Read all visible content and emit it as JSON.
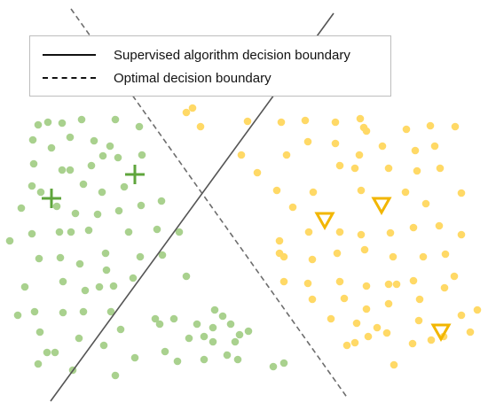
{
  "legend": {
    "solid_label": "Supervised algorithm decision boundary",
    "dashed_label": "Optimal decision boundary"
  },
  "colors": {
    "green_point": "#a9d18e",
    "yellow_point": "#ffd966",
    "green_marker": "#5fa53c",
    "orange_marker": "#f2b600",
    "solid_line": "#555555",
    "dashed_line": "#6d6d6d"
  },
  "icons": {
    "class_a_labeled": "plus-marker",
    "class_b_labeled": "triangle-down-marker"
  },
  "points": {
    "green": [
      [
        43,
        141
      ],
      [
        54,
        138
      ],
      [
        70,
        139
      ],
      [
        92,
        135
      ],
      [
        130,
        135
      ],
      [
        37,
        158
      ],
      [
        58,
        167
      ],
      [
        79,
        155
      ],
      [
        106,
        159
      ],
      [
        124,
        165
      ],
      [
        157,
        143
      ],
      [
        38,
        185
      ],
      [
        79,
        192
      ],
      [
        70,
        192
      ],
      [
        103,
        187
      ],
      [
        116,
        176
      ],
      [
        133,
        178
      ],
      [
        160,
        175
      ],
      [
        36,
        210
      ],
      [
        46,
        217
      ],
      [
        94,
        208
      ],
      [
        115,
        217
      ],
      [
        140,
        211
      ],
      [
        182,
        227
      ],
      [
        24,
        235
      ],
      [
        64,
        233
      ],
      [
        85,
        241
      ],
      [
        110,
        242
      ],
      [
        134,
        238
      ],
      [
        159,
        232
      ],
      [
        11,
        272
      ],
      [
        36,
        264
      ],
      [
        67,
        262
      ],
      [
        80,
        262
      ],
      [
        100,
        260
      ],
      [
        145,
        262
      ],
      [
        177,
        259
      ],
      [
        202,
        262
      ],
      [
        44,
        292
      ],
      [
        68,
        291
      ],
      [
        90,
        298
      ],
      [
        119,
        286
      ],
      [
        158,
        290
      ],
      [
        183,
        288
      ],
      [
        28,
        324
      ],
      [
        71,
        318
      ],
      [
        112,
        324
      ],
      [
        128,
        323
      ],
      [
        210,
        312
      ],
      [
        39,
        352
      ],
      [
        20,
        356
      ],
      [
        71,
        353
      ],
      [
        94,
        352
      ],
      [
        125,
        352
      ],
      [
        175,
        360
      ],
      [
        196,
        360
      ],
      [
        242,
        350
      ],
      [
        251,
        357
      ],
      [
        45,
        375
      ],
      [
        89,
        382
      ],
      [
        136,
        372
      ],
      [
        180,
        366
      ],
      [
        222,
        366
      ],
      [
        230,
        380
      ],
      [
        213,
        382
      ],
      [
        240,
        370
      ],
      [
        260,
        366
      ],
      [
        270,
        378
      ],
      [
        53,
        398
      ],
      [
        62,
        398
      ],
      [
        117,
        390
      ],
      [
        152,
        404
      ],
      [
        186,
        397
      ],
      [
        200,
        408
      ],
      [
        230,
        406
      ],
      [
        256,
        401
      ],
      [
        268,
        406
      ],
      [
        43,
        411
      ],
      [
        82,
        418
      ],
      [
        130,
        424
      ],
      [
        308,
        414
      ],
      [
        320,
        410
      ],
      [
        280,
        374
      ],
      [
        265,
        386
      ],
      [
        240,
        386
      ],
      [
        120,
        305
      ],
      [
        150,
        314
      ],
      [
        96,
        328
      ]
    ],
    "yellow": [
      [
        210,
        127
      ],
      [
        217,
        122
      ],
      [
        226,
        143
      ],
      [
        279,
        137
      ],
      [
        317,
        138
      ],
      [
        344,
        136
      ],
      [
        378,
        138
      ],
      [
        406,
        134
      ],
      [
        410,
        144
      ],
      [
        413,
        148
      ],
      [
        458,
        146
      ],
      [
        485,
        142
      ],
      [
        513,
        143
      ],
      [
        272,
        175
      ],
      [
        290,
        195
      ],
      [
        323,
        175
      ],
      [
        347,
        160
      ],
      [
        378,
        162
      ],
      [
        405,
        175
      ],
      [
        431,
        165
      ],
      [
        468,
        170
      ],
      [
        490,
        165
      ],
      [
        312,
        215
      ],
      [
        353,
        217
      ],
      [
        383,
        187
      ],
      [
        400,
        190
      ],
      [
        438,
        190
      ],
      [
        470,
        193
      ],
      [
        496,
        190
      ],
      [
        330,
        234
      ],
      [
        407,
        215
      ],
      [
        457,
        217
      ],
      [
        480,
        230
      ],
      [
        520,
        218
      ],
      [
        315,
        272
      ],
      [
        348,
        262
      ],
      [
        383,
        262
      ],
      [
        407,
        265
      ],
      [
        440,
        263
      ],
      [
        466,
        257
      ],
      [
        495,
        255
      ],
      [
        520,
        265
      ],
      [
        320,
        290
      ],
      [
        352,
        293
      ],
      [
        380,
        286
      ],
      [
        411,
        282
      ],
      [
        443,
        290
      ],
      [
        477,
        290
      ],
      [
        502,
        287
      ],
      [
        320,
        318
      ],
      [
        347,
        320
      ],
      [
        383,
        318
      ],
      [
        413,
        323
      ],
      [
        438,
        321
      ],
      [
        466,
        317
      ],
      [
        512,
        312
      ],
      [
        352,
        338
      ],
      [
        388,
        337
      ],
      [
        413,
        349
      ],
      [
        438,
        343
      ],
      [
        473,
        338
      ],
      [
        501,
        325
      ],
      [
        538,
        350
      ],
      [
        373,
        360
      ],
      [
        402,
        365
      ],
      [
        425,
        370
      ],
      [
        472,
        362
      ],
      [
        520,
        356
      ],
      [
        391,
        390
      ],
      [
        436,
        376
      ],
      [
        465,
        388
      ],
      [
        486,
        384
      ],
      [
        400,
        387
      ],
      [
        415,
        380
      ],
      [
        444,
        412
      ],
      [
        500,
        380
      ],
      [
        530,
        375
      ],
      [
        315,
        286
      ],
      [
        447,
        321
      ]
    ]
  },
  "labeled_markers": {
    "plus": [
      [
        58,
        224
      ],
      [
        152,
        197
      ]
    ],
    "triangle": [
      [
        366,
        249
      ],
      [
        430,
        232
      ],
      [
        497,
        375
      ]
    ]
  }
}
